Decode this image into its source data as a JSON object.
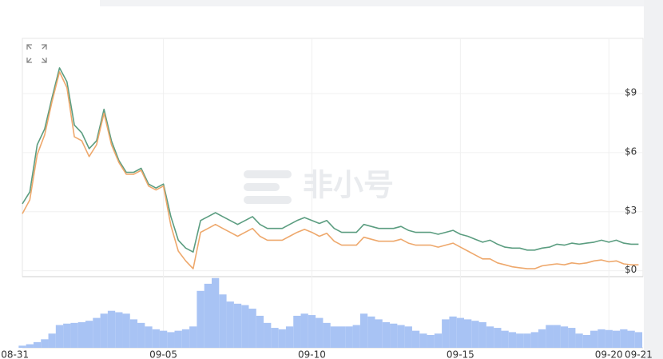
{
  "chart_data": {
    "type": "line",
    "annotation": "非小号",
    "x": [
      0.25,
      0.5,
      0.75,
      1,
      1.25,
      1.5,
      1.75,
      2,
      2.25,
      2.5,
      2.75,
      3,
      3.25,
      3.5,
      3.75,
      4,
      4.25,
      4.5,
      4.75,
      5,
      5.25,
      5.5,
      5.75,
      6,
      6.25,
      6.5,
      6.75,
      7,
      7.25,
      7.5,
      7.75,
      8,
      8.25,
      8.5,
      8.75,
      9,
      9.25,
      9.5,
      9.75,
      10,
      10.25,
      10.5,
      10.75,
      11,
      11.25,
      11.5,
      11.75,
      12,
      12.25,
      12.5,
      12.75,
      13,
      13.25,
      13.5,
      13.75,
      14,
      14.25,
      14.5,
      14.75,
      15,
      15.25,
      15.5,
      15.75,
      16,
      16.25,
      16.5,
      16.75,
      17,
      17.25,
      17.5,
      17.75,
      18,
      18.25,
      18.5,
      18.75,
      19,
      19.25,
      19.5,
      19.75,
      20,
      20.25,
      20.5,
      20.75,
      21
    ],
    "xlim": [
      0.25,
      21.15
    ],
    "xticks": [
      {
        "value": 0,
        "label": "08-31"
      },
      {
        "value": 5,
        "label": "09-05"
      },
      {
        "value": 10,
        "label": "09-10"
      },
      {
        "value": 15,
        "label": "09-15"
      },
      {
        "value": 20,
        "label": "09-20"
      },
      {
        "value": 21,
        "label": "09-21"
      }
    ],
    "ylim": [
      -0.3,
      11.8
    ],
    "yticks": [
      {
        "value": 0,
        "label": "$0"
      },
      {
        "value": 3,
        "label": "$3"
      },
      {
        "value": 6,
        "label": "$6"
      },
      {
        "value": 9,
        "label": "$9"
      }
    ],
    "grid": true,
    "series": [
      {
        "color": "#5b9d80",
        "values": [
          3.4,
          4.0,
          6.4,
          7.2,
          8.8,
          10.3,
          9.6,
          7.4,
          7.0,
          6.2,
          6.6,
          8.2,
          6.6,
          5.6,
          5.0,
          5.0,
          5.2,
          4.4,
          4.2,
          4.4,
          2.75,
          1.55,
          1.15,
          0.95,
          2.55,
          2.75,
          2.95,
          2.75,
          2.55,
          2.35,
          2.55,
          2.75,
          2.35,
          2.15,
          2.15,
          2.15,
          2.35,
          2.55,
          2.7,
          2.55,
          2.4,
          2.55,
          2.15,
          1.95,
          1.95,
          1.95,
          2.35,
          2.25,
          2.15,
          2.15,
          2.15,
          2.25,
          2.05,
          1.95,
          1.95,
          1.95,
          1.85,
          1.95,
          2.05,
          1.85,
          1.75,
          1.6,
          1.45,
          1.55,
          1.35,
          1.2,
          1.15,
          1.15,
          1.05,
          1.05,
          1.15,
          1.2,
          1.35,
          1.3,
          1.4,
          1.35,
          1.4,
          1.45,
          1.55,
          1.45,
          1.55,
          1.4,
          1.35,
          1.35
        ]
      },
      {
        "color": "#eea86c",
        "values": [
          2.9,
          3.6,
          5.9,
          6.9,
          8.6,
          10.1,
          9.3,
          6.8,
          6.6,
          5.8,
          6.4,
          8.0,
          6.4,
          5.5,
          4.9,
          4.9,
          5.1,
          4.3,
          4.1,
          4.3,
          2.3,
          1.0,
          0.5,
          0.1,
          1.95,
          2.15,
          2.35,
          2.15,
          1.95,
          1.75,
          1.95,
          2.15,
          1.75,
          1.55,
          1.55,
          1.55,
          1.75,
          1.95,
          2.1,
          1.95,
          1.75,
          1.9,
          1.5,
          1.3,
          1.3,
          1.3,
          1.7,
          1.6,
          1.5,
          1.5,
          1.5,
          1.6,
          1.4,
          1.3,
          1.3,
          1.3,
          1.2,
          1.3,
          1.4,
          1.2,
          1.0,
          0.8,
          0.6,
          0.6,
          0.4,
          0.3,
          0.2,
          0.15,
          0.1,
          0.1,
          0.25,
          0.3,
          0.35,
          0.3,
          0.4,
          0.35,
          0.4,
          0.5,
          0.55,
          0.45,
          0.5,
          0.35,
          0.3,
          0.3
        ]
      },
      {
        "type": "bar",
        "axis": "y2",
        "color": "#a8c3f4",
        "values": [
          3,
          5,
          8,
          12,
          20,
          32,
          34,
          35,
          36,
          38,
          42,
          48,
          52,
          50,
          48,
          40,
          35,
          30,
          26,
          24,
          22,
          24,
          26,
          30,
          80,
          90,
          98,
          75,
          65,
          62,
          60,
          55,
          45,
          35,
          28,
          26,
          30,
          45,
          48,
          46,
          42,
          35,
          30,
          30,
          30,
          32,
          48,
          44,
          40,
          36,
          34,
          32,
          30,
          24,
          20,
          18,
          20,
          40,
          44,
          42,
          40,
          38,
          36,
          30,
          28,
          24,
          22,
          20,
          20,
          22,
          26,
          32,
          32,
          30,
          28,
          20,
          18,
          24,
          26,
          25,
          24,
          26,
          24,
          22
        ]
      }
    ],
    "y2lim": [
      0,
      100
    ]
  }
}
